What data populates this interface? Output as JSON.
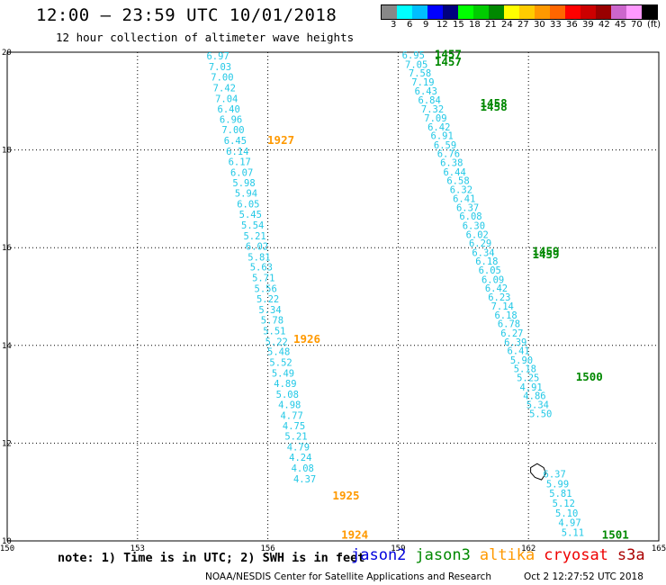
{
  "header": {
    "title": "12:00 — 23:59 UTC 10/01/2018",
    "subtitle": "12 hour collection of altimeter wave heights"
  },
  "colorbar": {
    "colors": [
      "#888888",
      "#00ffff",
      "#00bfff",
      "#0000ff",
      "#00007f",
      "#00ff00",
      "#00cc00",
      "#008800",
      "#ffff00",
      "#ffcc00",
      "#ff9900",
      "#ff6600",
      "#ff0000",
      "#cc0000",
      "#990000",
      "#cc66cc",
      "#ff99ff",
      "#000000"
    ],
    "labels": [
      "3",
      "6",
      "9",
      "12",
      "15",
      "18",
      "21",
      "24",
      "27",
      "30",
      "33",
      "36",
      "39",
      "42",
      "45",
      "70",
      "(ft)"
    ]
  },
  "chart_data": {
    "type": "scatter",
    "x_ticks": [
      "150",
      "153",
      "156",
      "159",
      "162",
      "165"
    ],
    "y_ticks": [
      "20",
      "18",
      "16",
      "14",
      "12",
      "10"
    ],
    "xlim": [
      150,
      165
    ],
    "ylim": [
      10,
      20
    ],
    "grid": true,
    "tracks": [
      {
        "satellite": "altika",
        "color": "#22c8e6",
        "points": [
          {
            "lon": 154.85,
            "lat": 19.85,
            "v": "6.97"
          },
          {
            "lon": 154.9,
            "lat": 19.63,
            "v": "7.03"
          },
          {
            "lon": 154.95,
            "lat": 19.42,
            "v": "7.00"
          },
          {
            "lon": 155.0,
            "lat": 19.2,
            "v": "7.42"
          },
          {
            "lon": 155.05,
            "lat": 18.98,
            "v": "7.04"
          },
          {
            "lon": 155.1,
            "lat": 18.77,
            "v": "6.40"
          },
          {
            "lon": 155.15,
            "lat": 18.55,
            "v": "6.96"
          },
          {
            "lon": 155.2,
            "lat": 18.34,
            "v": "7.00"
          },
          {
            "lon": 155.25,
            "lat": 18.12,
            "v": "6.45"
          },
          {
            "lon": 155.3,
            "lat": 17.9,
            "v": "6.14"
          },
          {
            "lon": 155.35,
            "lat": 17.69,
            "v": "6.17"
          },
          {
            "lon": 155.4,
            "lat": 17.47,
            "v": "6.07"
          },
          {
            "lon": 155.45,
            "lat": 17.26,
            "v": "5.98"
          },
          {
            "lon": 155.5,
            "lat": 17.04,
            "v": "5.94"
          },
          {
            "lon": 155.55,
            "lat": 16.82,
            "v": "6.05"
          },
          {
            "lon": 155.6,
            "lat": 16.61,
            "v": "5.45"
          },
          {
            "lon": 155.65,
            "lat": 16.39,
            "v": "5.54"
          },
          {
            "lon": 155.7,
            "lat": 16.17,
            "v": "5.21"
          },
          {
            "lon": 155.75,
            "lat": 15.96,
            "v": "6.02"
          },
          {
            "lon": 155.8,
            "lat": 15.74,
            "v": "5.81"
          },
          {
            "lon": 155.85,
            "lat": 15.53,
            "v": "5.63"
          },
          {
            "lon": 155.9,
            "lat": 15.31,
            "v": "5.71"
          },
          {
            "lon": 155.95,
            "lat": 15.09,
            "v": "5.56"
          },
          {
            "lon": 156.0,
            "lat": 14.88,
            "v": "5.22"
          },
          {
            "lon": 156.05,
            "lat": 14.66,
            "v": "5.34"
          },
          {
            "lon": 156.1,
            "lat": 14.45,
            "v": "5.78"
          },
          {
            "lon": 156.15,
            "lat": 14.23,
            "v": "5.51"
          },
          {
            "lon": 156.2,
            "lat": 14.01,
            "v": "5.22"
          },
          {
            "lon": 156.25,
            "lat": 13.8,
            "v": "5.48"
          },
          {
            "lon": 156.3,
            "lat": 13.58,
            "v": "5.52"
          },
          {
            "lon": 156.35,
            "lat": 13.36,
            "v": "5.49"
          },
          {
            "lon": 156.4,
            "lat": 13.15,
            "v": "4.89"
          },
          {
            "lon": 156.45,
            "lat": 12.93,
            "v": "5.08"
          },
          {
            "lon": 156.5,
            "lat": 12.72,
            "v": "4.98"
          },
          {
            "lon": 156.55,
            "lat": 12.5,
            "v": "4.77"
          },
          {
            "lon": 156.6,
            "lat": 12.28,
            "v": "4.75"
          },
          {
            "lon": 156.65,
            "lat": 12.07,
            "v": "5.21"
          },
          {
            "lon": 156.7,
            "lat": 11.85,
            "v": "4.79"
          },
          {
            "lon": 156.75,
            "lat": 11.64,
            "v": "4.24"
          },
          {
            "lon": 156.8,
            "lat": 11.42,
            "v": "4.08"
          },
          {
            "lon": 156.85,
            "lat": 11.2,
            "v": "4.37"
          }
        ],
        "time_labels": [
          {
            "lon": 156.3,
            "lat": 18.12,
            "t": "1927"
          },
          {
            "lon": 156.9,
            "lat": 14.05,
            "t": "1926"
          },
          {
            "lon": 157.8,
            "lat": 10.85,
            "t": "1925"
          },
          {
            "lon": 158.0,
            "lat": 10.05,
            "t": "1924"
          }
        ]
      },
      {
        "satellite": "jason3",
        "color": "#22c8e6",
        "points": [
          {
            "lon": 159.35,
            "lat": 19.87,
            "v": "6.95"
          },
          {
            "lon": 159.42,
            "lat": 19.68,
            "v": "7.05"
          },
          {
            "lon": 159.5,
            "lat": 19.5,
            "v": "7.58"
          },
          {
            "lon": 159.57,
            "lat": 19.32,
            "v": "7.19"
          },
          {
            "lon": 159.64,
            "lat": 19.13,
            "v": "6.43"
          },
          {
            "lon": 159.72,
            "lat": 18.95,
            "v": "6.84"
          },
          {
            "lon": 159.79,
            "lat": 18.77,
            "v": "7.32"
          },
          {
            "lon": 159.86,
            "lat": 18.58,
            "v": "7.09"
          },
          {
            "lon": 159.94,
            "lat": 18.4,
            "v": "6.42"
          },
          {
            "lon": 160.01,
            "lat": 18.22,
            "v": "6.91"
          },
          {
            "lon": 160.08,
            "lat": 18.03,
            "v": "6.59"
          },
          {
            "lon": 160.16,
            "lat": 17.85,
            "v": "6.76"
          },
          {
            "lon": 160.23,
            "lat": 17.67,
            "v": "6.38"
          },
          {
            "lon": 160.3,
            "lat": 17.48,
            "v": "6.44"
          },
          {
            "lon": 160.38,
            "lat": 17.3,
            "v": "6.58"
          },
          {
            "lon": 160.45,
            "lat": 17.12,
            "v": "6.32"
          },
          {
            "lon": 160.52,
            "lat": 16.93,
            "v": "6.41"
          },
          {
            "lon": 160.6,
            "lat": 16.75,
            "v": "6.37"
          },
          {
            "lon": 160.67,
            "lat": 16.57,
            "v": "6.08"
          },
          {
            "lon": 160.74,
            "lat": 16.38,
            "v": "6.30"
          },
          {
            "lon": 160.82,
            "lat": 16.2,
            "v": "6.02"
          },
          {
            "lon": 160.89,
            "lat": 16.02,
            "v": "6.29"
          },
          {
            "lon": 160.96,
            "lat": 15.83,
            "v": "6.34"
          },
          {
            "lon": 161.04,
            "lat": 15.65,
            "v": "6.18"
          },
          {
            "lon": 161.11,
            "lat": 15.47,
            "v": "6.05"
          },
          {
            "lon": 161.18,
            "lat": 15.28,
            "v": "6.09"
          },
          {
            "lon": 161.26,
            "lat": 15.1,
            "v": "6.42"
          },
          {
            "lon": 161.33,
            "lat": 14.92,
            "v": "6.23"
          },
          {
            "lon": 161.4,
            "lat": 14.73,
            "v": "7.14"
          },
          {
            "lon": 161.48,
            "lat": 14.55,
            "v": "6.18"
          },
          {
            "lon": 161.55,
            "lat": 14.37,
            "v": "6.78"
          },
          {
            "lon": 161.62,
            "lat": 14.18,
            "v": "6.27"
          },
          {
            "lon": 161.7,
            "lat": 14.0,
            "v": "6.39"
          },
          {
            "lon": 161.77,
            "lat": 13.82,
            "v": "6.41"
          },
          {
            "lon": 161.84,
            "lat": 13.63,
            "v": "5.90"
          },
          {
            "lon": 161.92,
            "lat": 13.45,
            "v": "5.18"
          },
          {
            "lon": 161.99,
            "lat": 13.27,
            "v": "5.25"
          },
          {
            "lon": 162.06,
            "lat": 13.08,
            "v": "4.91"
          },
          {
            "lon": 162.14,
            "lat": 12.9,
            "v": "4.86"
          },
          {
            "lon": 162.21,
            "lat": 12.72,
            "v": "5.34"
          },
          {
            "lon": 162.28,
            "lat": 12.53,
            "v": "5.50"
          },
          {
            "lon": 162.6,
            "lat": 11.3,
            "v": "6.37"
          },
          {
            "lon": 162.67,
            "lat": 11.1,
            "v": "5.99"
          },
          {
            "lon": 162.74,
            "lat": 10.9,
            "v": "5.81"
          },
          {
            "lon": 162.81,
            "lat": 10.7,
            "v": "5.12"
          },
          {
            "lon": 162.88,
            "lat": 10.5,
            "v": "5.10"
          },
          {
            "lon": 162.95,
            "lat": 10.3,
            "v": "4.97"
          },
          {
            "lon": 163.02,
            "lat": 10.1,
            "v": "5.11"
          }
        ],
        "time_labels": [
          {
            "lon": 160.15,
            "lat": 19.88,
            "t": "1457"
          },
          {
            "lon": 160.15,
            "lat": 19.72,
            "t": "1457"
          },
          {
            "lon": 161.2,
            "lat": 18.88,
            "t": "1458"
          },
          {
            "lon": 161.2,
            "lat": 18.8,
            "t": "1458"
          },
          {
            "lon": 162.4,
            "lat": 15.85,
            "t": "1459"
          },
          {
            "lon": 162.4,
            "lat": 15.78,
            "t": "1459"
          },
          {
            "lon": 163.4,
            "lat": 13.28,
            "t": "1500"
          },
          {
            "lon": 164.0,
            "lat": 10.05,
            "t": "1501"
          }
        ]
      }
    ],
    "land_outline": [
      [
        162.05,
        11.5
      ],
      [
        162.2,
        11.58
      ],
      [
        162.35,
        11.5
      ],
      [
        162.4,
        11.38
      ],
      [
        162.3,
        11.25
      ],
      [
        162.15,
        11.3
      ],
      [
        162.05,
        11.4
      ]
    ]
  },
  "footer": {
    "note": "note: 1) Time is in UTC; 2) SWH is in feet",
    "legend": [
      {
        "name": "jason2",
        "color": "#0000dd"
      },
      {
        "name": "jason3",
        "color": "#008800"
      },
      {
        "name": "altika",
        "color": "#ff9900"
      },
      {
        "name": "cryosat",
        "color": "#ee0000"
      },
      {
        "name": "s3a",
        "color": "#aa0000"
      }
    ],
    "credit": "NOAA/NESDIS Center for Satellite Applications and Research",
    "timestamp": "Oct  2 12:27:52 UTC 2018"
  }
}
